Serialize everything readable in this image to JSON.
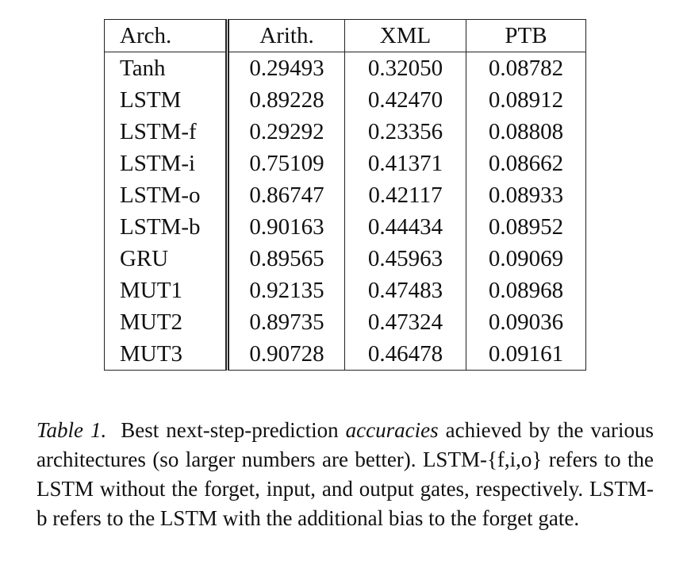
{
  "table": {
    "headers": [
      "Arch.",
      "Arith.",
      "XML",
      "PTB"
    ],
    "rows": [
      {
        "arch": "Tanh",
        "arith": "0.29493",
        "xml": "0.32050",
        "ptb": "0.08782"
      },
      {
        "arch": "LSTM",
        "arith": "0.89228",
        "xml": "0.42470",
        "ptb": "0.08912"
      },
      {
        "arch": "LSTM-f",
        "arith": "0.29292",
        "xml": "0.23356",
        "ptb": "0.08808"
      },
      {
        "arch": "LSTM-i",
        "arith": "0.75109",
        "xml": "0.41371",
        "ptb": "0.08662"
      },
      {
        "arch": "LSTM-o",
        "arith": "0.86747",
        "xml": "0.42117",
        "ptb": "0.08933"
      },
      {
        "arch": "LSTM-b",
        "arith": "0.90163",
        "xml": "0.44434",
        "ptb": "0.08952"
      },
      {
        "arch": "GRU",
        "arith": "0.89565",
        "xml": "0.45963",
        "ptb": "0.09069"
      },
      {
        "arch": "MUT1",
        "arith": "0.92135",
        "xml": "0.47483",
        "ptb": "0.08968"
      },
      {
        "arch": "MUT2",
        "arith": "0.89735",
        "xml": "0.47324",
        "ptb": "0.09036"
      },
      {
        "arch": "MUT3",
        "arith": "0.90728",
        "xml": "0.46478",
        "ptb": "0.09161"
      }
    ],
    "bold_cells": {
      "arith": [
        "MUT1"
      ],
      "xml": [
        "MUT1",
        "MUT2"
      ],
      "ptb": [
        "MUT3"
      ]
    }
  },
  "caption": {
    "label": "Table 1.",
    "text_before": "Best next-step-prediction",
    "emphasis": "accuracies",
    "text_after": "achieved by the various architectures (so larger numbers are better). LSTM-{f,i,o} refers to the LSTM without the forget, input, and output gates, respectively. LSTM-b refers to the LSTM with the additional bias to the forget gate."
  }
}
